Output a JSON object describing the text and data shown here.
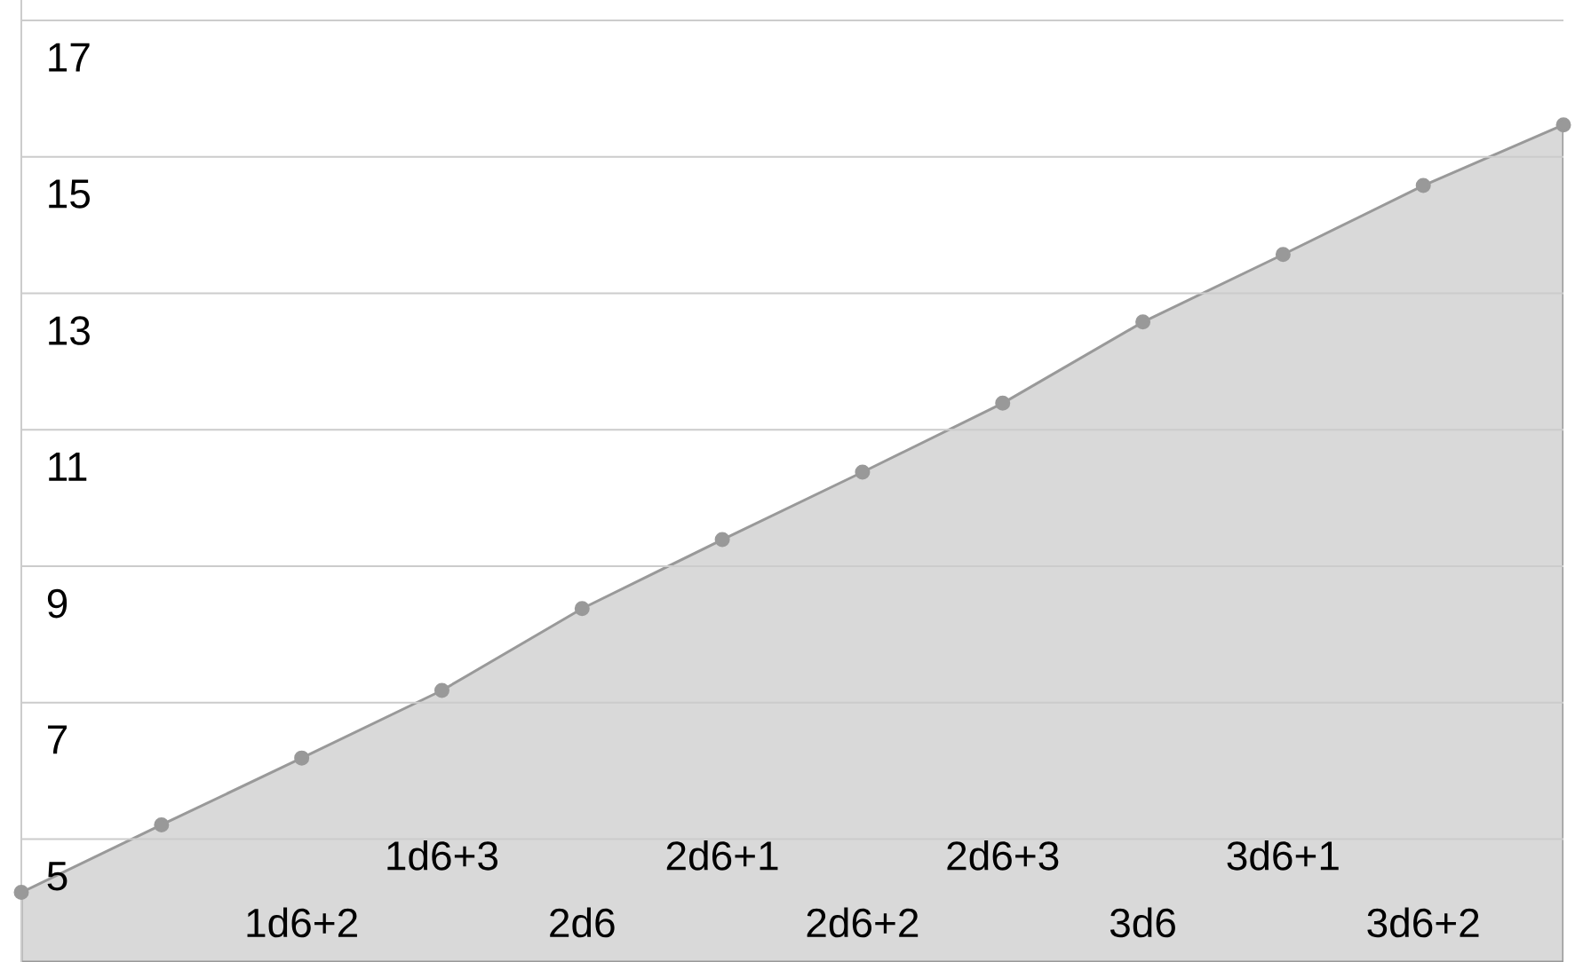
{
  "chart_data": {
    "type": "area",
    "categories": [
      null,
      null,
      "1d6+2",
      "1d6+3",
      "2d6",
      "2d6+1",
      "2d6+2",
      "2d6+3",
      "3d6",
      "3d6+1",
      "3d6+2",
      null
    ],
    "series": [
      {
        "color": "#999999",
        "values": [
          4.22,
          5.21,
          6.19,
          7.18,
          8.38,
          9.39,
          10.38,
          11.39,
          12.58,
          13.57,
          14.58,
          15.47
        ]
      }
    ],
    "ylim": [
      3.2,
      17.3
    ],
    "yticks": [
      5,
      7,
      9,
      11,
      13,
      15,
      17
    ],
    "grid": "y",
    "marker": "circle",
    "line_style": "solid"
  }
}
